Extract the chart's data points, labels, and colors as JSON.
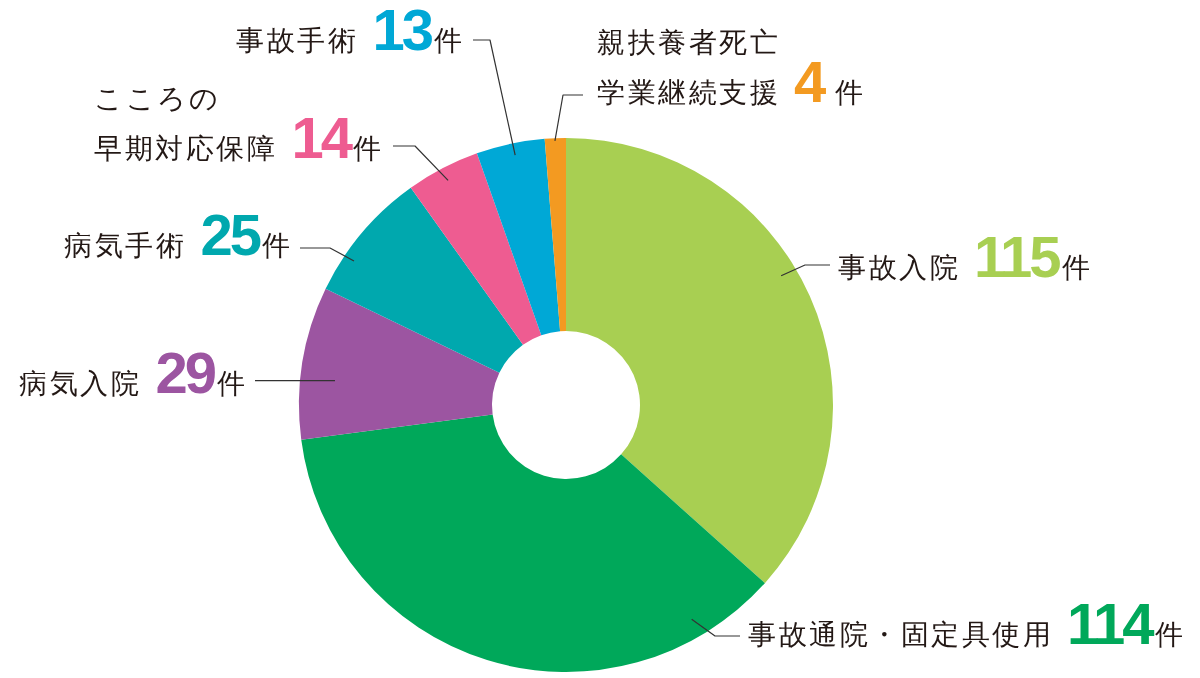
{
  "chart_data": {
    "type": "donut",
    "categories": [
      "事故入院",
      "事故通院・固定具使用",
      "病気入院",
      "病気手術",
      "こころの早期対応保障",
      "事故手術",
      "親扶養者死亡学業継続支援"
    ],
    "values": [
      115,
      114,
      29,
      25,
      14,
      13,
      4
    ],
    "colors": [
      "#a8cf52",
      "#00a85a",
      "#9c55a1",
      "#00a8ae",
      "#ee5c91",
      "#00a8d6",
      "#f39a21"
    ],
    "value_labels": [
      "115件",
      "114件",
      "29件",
      "25件",
      "14件",
      "13件",
      "4 件"
    ]
  }
}
